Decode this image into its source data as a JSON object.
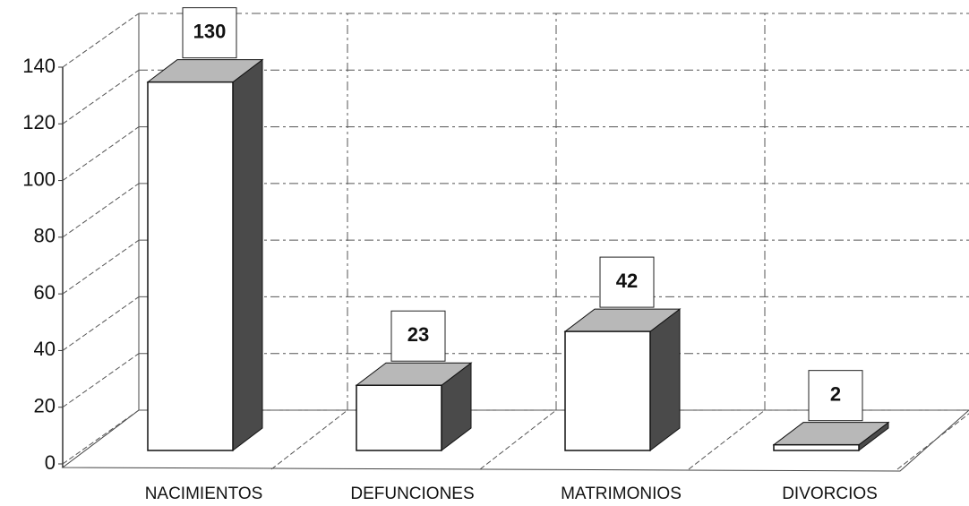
{
  "chart_data": {
    "type": "bar3d",
    "categories": [
      "NACIMIENTOS",
      "DEFUNCIONES",
      "MATRIMONIOS",
      "DIVORCIOS"
    ],
    "values": [
      130,
      23,
      42,
      2
    ],
    "ylim": [
      0,
      140
    ],
    "yticks": [
      0,
      20,
      40,
      60,
      80,
      100,
      120,
      140
    ],
    "grid": true,
    "color": "#ffffff"
  }
}
